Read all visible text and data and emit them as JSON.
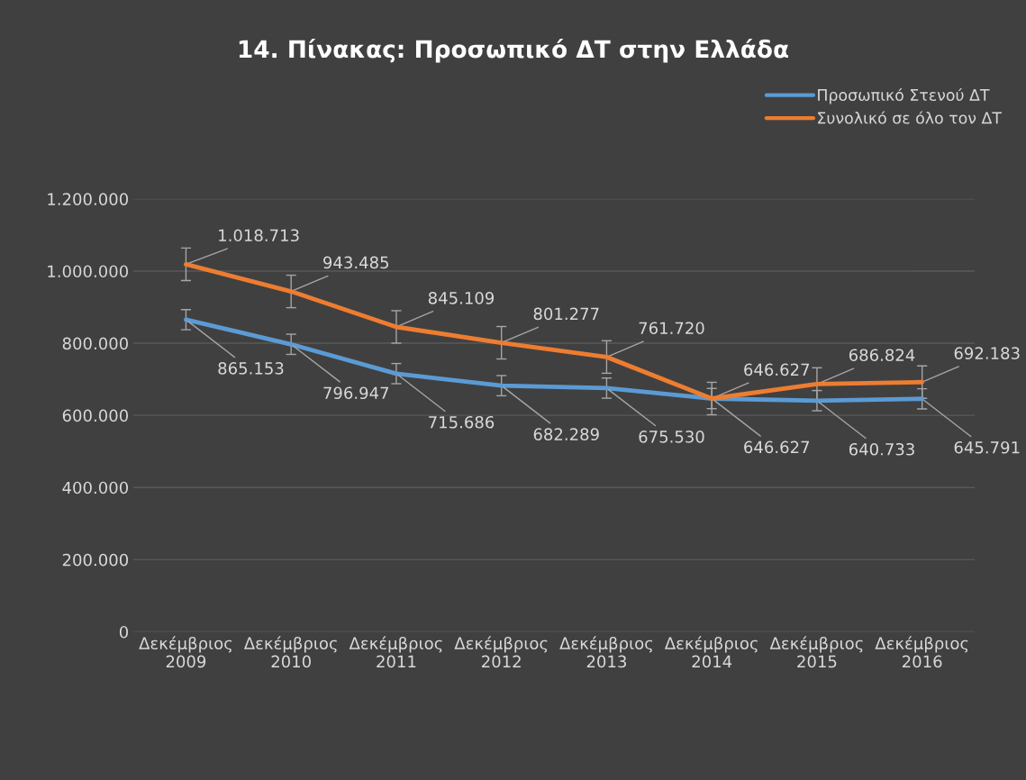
{
  "chart_data": {
    "type": "line",
    "title": "14. Πίνακας: Προσωπικό ΔΤ στην Ελλάδα",
    "categories": [
      "Δεκέμβριος\n2009",
      "Δεκέμβριος\n2010",
      "Δεκέμβριος\n2011",
      "Δεκέμβριος\n2012",
      "Δεκέμβριος\n2013",
      "Δεκέμβριος\n2014",
      "Δεκέμβριος\n2015",
      "Δεκέμβριος\n2016"
    ],
    "series": [
      {
        "name": "Προσωπικό Στενού ΔΤ",
        "color": "#5b9bd5",
        "values": [
          865153,
          796947,
          715686,
          682289,
          675530,
          646627,
          640733,
          645791
        ],
        "errors": [
          28000,
          28000,
          28000,
          28000,
          28000,
          28000,
          28000,
          28000
        ],
        "value_labels": [
          "865.153",
          "796.947",
          "715.686",
          "682.289",
          "675.530",
          "646.627",
          "640.733",
          "645.791"
        ]
      },
      {
        "name": "Συνολικό σε όλο τον ΔΤ",
        "color": "#ed7d31",
        "values": [
          1018713,
          943485,
          845109,
          801277,
          761720,
          646627,
          686824,
          692183
        ],
        "errors": [
          45000,
          45000,
          45000,
          45000,
          45000,
          45000,
          45000,
          45000
        ],
        "value_labels": [
          "1.018.713",
          "943.485",
          "845.109",
          "801.277",
          "761.720",
          "646.627",
          "686.824",
          "692.183"
        ]
      }
    ],
    "ylim": [
      0,
      1200000
    ],
    "yticks": [
      0,
      {
        "value": 200000,
        "label": "200.000"
      },
      {
        "value": 400000,
        "label": "400.000"
      },
      {
        "value": 600000,
        "label": "600.000"
      },
      {
        "value": 800000,
        "label": "800.000"
      },
      {
        "value": 1000000,
        "label": "1.000.000"
      },
      {
        "value": 1200000,
        "label": "1.200.000"
      }
    ],
    "grid": "y",
    "legend": "top right",
    "marker": "none",
    "line_style": "solid"
  }
}
